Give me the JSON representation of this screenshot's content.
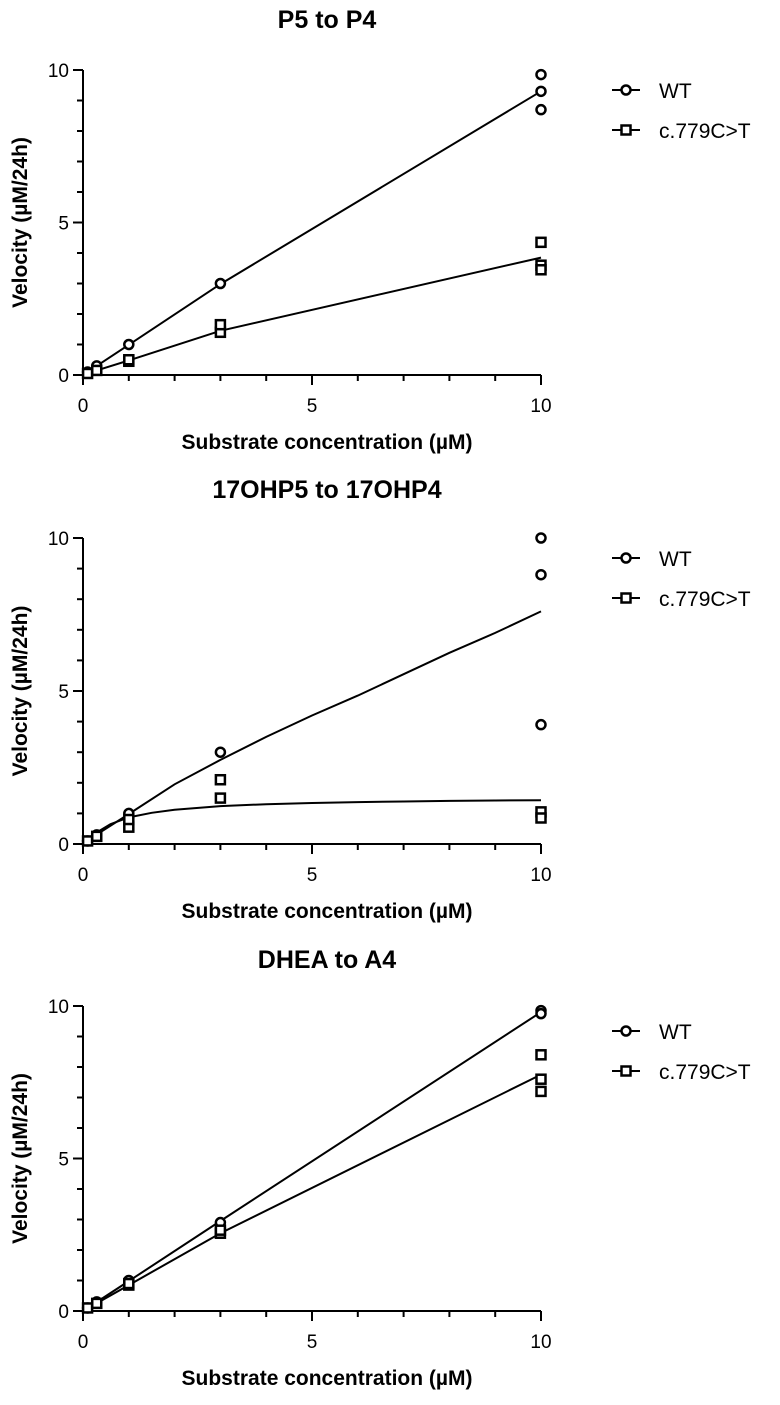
{
  "chart_data": [
    {
      "type": "scatter",
      "title": "P5 to P4",
      "xlabel": "Substrate concentration (µM)",
      "ylabel": "Velocity (µM/24h)",
      "xlim": [
        0,
        10
      ],
      "ylim": [
        0,
        10
      ],
      "x_ticks": [
        "0",
        "5",
        "10"
      ],
      "y_ticks": [
        "0",
        "5",
        "10"
      ],
      "legend_position": "right",
      "series": [
        {
          "name": "WT",
          "marker": "circle",
          "points": [
            [
              0.1,
              0.1
            ],
            [
              0.3,
              0.3
            ],
            [
              1,
              1.0
            ],
            [
              3,
              3.0
            ],
            [
              10,
              9.85
            ],
            [
              10,
              9.3
            ],
            [
              10,
              8.7
            ]
          ],
          "fit": [
            [
              0,
              0
            ],
            [
              0.3,
              0.3
            ],
            [
              1,
              0.99
            ],
            [
              3,
              2.98
            ],
            [
              10,
              9.3
            ]
          ]
        },
        {
          "name": "c.779C>T",
          "marker": "square",
          "points": [
            [
              0.1,
              0.05
            ],
            [
              0.3,
              0.15
            ],
            [
              1,
              0.45
            ],
            [
              1,
              0.5
            ],
            [
              3,
              1.4
            ],
            [
              3,
              1.65
            ],
            [
              10,
              4.35
            ],
            [
              10,
              3.6
            ],
            [
              10,
              3.45
            ]
          ],
          "fit": [
            [
              0,
              0
            ],
            [
              0.3,
              0.15
            ],
            [
              1,
              0.48
            ],
            [
              3,
              1.45
            ],
            [
              10,
              3.85
            ]
          ]
        }
      ]
    },
    {
      "type": "scatter",
      "title": "17OHP5 to 17OHP4",
      "xlabel": "Substrate concentration (µM)",
      "ylabel": "Velocity (µM/24h)",
      "xlim": [
        0,
        10
      ],
      "ylim": [
        0,
        10
      ],
      "x_ticks": [
        "0",
        "5",
        "10"
      ],
      "y_ticks": [
        "0",
        "5",
        "10"
      ],
      "legend_position": "right",
      "series": [
        {
          "name": "WT",
          "marker": "circle",
          "points": [
            [
              0.1,
              0.1
            ],
            [
              0.3,
              0.3
            ],
            [
              1,
              1.0
            ],
            [
              3,
              3.0
            ],
            [
              10,
              10.0
            ],
            [
              10,
              8.8
            ],
            [
              10,
              3.9
            ]
          ],
          "fit": [
            [
              0,
              0
            ],
            [
              0.3,
              0.31
            ],
            [
              1,
              0.98
            ],
            [
              2,
              1.95
            ],
            [
              3,
              2.75
            ],
            [
              4,
              3.5
            ],
            [
              5,
              4.2
            ],
            [
              6,
              4.85
            ],
            [
              7,
              5.55
            ],
            [
              8,
              6.25
            ],
            [
              9,
              6.9
            ],
            [
              10,
              7.6
            ]
          ]
        },
        {
          "name": "c.779C>T",
          "marker": "square",
          "points": [
            [
              0.1,
              0.1
            ],
            [
              0.3,
              0.25
            ],
            [
              1,
              0.55
            ],
            [
              1,
              0.8
            ],
            [
              3,
              1.5
            ],
            [
              3,
              2.1
            ],
            [
              10,
              1.05
            ],
            [
              10,
              0.85
            ]
          ],
          "fit": [
            [
              0,
              0
            ],
            [
              0.3,
              0.38
            ],
            [
              0.6,
              0.65
            ],
            [
              1,
              0.87
            ],
            [
              1.5,
              1.02
            ],
            [
              2,
              1.12
            ],
            [
              3,
              1.24
            ],
            [
              4,
              1.3
            ],
            [
              5,
              1.34
            ],
            [
              6,
              1.37
            ],
            [
              7,
              1.39
            ],
            [
              8,
              1.41
            ],
            [
              9,
              1.42
            ],
            [
              10,
              1.43
            ]
          ]
        }
      ]
    },
    {
      "type": "scatter",
      "title": "DHEA to A4",
      "xlabel": "Substrate concentration (µM)",
      "ylabel": "Velocity (µM/24h)",
      "xlim": [
        0,
        10
      ],
      "ylim": [
        0,
        10
      ],
      "x_ticks": [
        "0",
        "5",
        "10"
      ],
      "y_ticks": [
        "0",
        "5",
        "10"
      ],
      "legend_position": "right",
      "series": [
        {
          "name": "WT",
          "marker": "circle",
          "points": [
            [
              0.1,
              0.1
            ],
            [
              0.3,
              0.3
            ],
            [
              1,
              1.0
            ],
            [
              3,
              2.9
            ],
            [
              10,
              9.85
            ],
            [
              10,
              9.75
            ]
          ],
          "fit": [
            [
              0,
              0
            ],
            [
              1,
              0.98
            ],
            [
              3,
              2.95
            ],
            [
              10,
              9.8
            ]
          ]
        },
        {
          "name": "c.779C>T",
          "marker": "square",
          "points": [
            [
              0.1,
              0.1
            ],
            [
              0.3,
              0.25
            ],
            [
              1,
              0.85
            ],
            [
              1,
              0.9
            ],
            [
              3,
              2.55
            ],
            [
              3,
              2.65
            ],
            [
              10,
              8.4
            ],
            [
              10,
              7.6
            ],
            [
              10,
              7.2
            ]
          ],
          "fit": [
            [
              0,
              0
            ],
            [
              1,
              0.85
            ],
            [
              3,
              2.55
            ],
            [
              10,
              7.75
            ]
          ]
        }
      ]
    }
  ]
}
